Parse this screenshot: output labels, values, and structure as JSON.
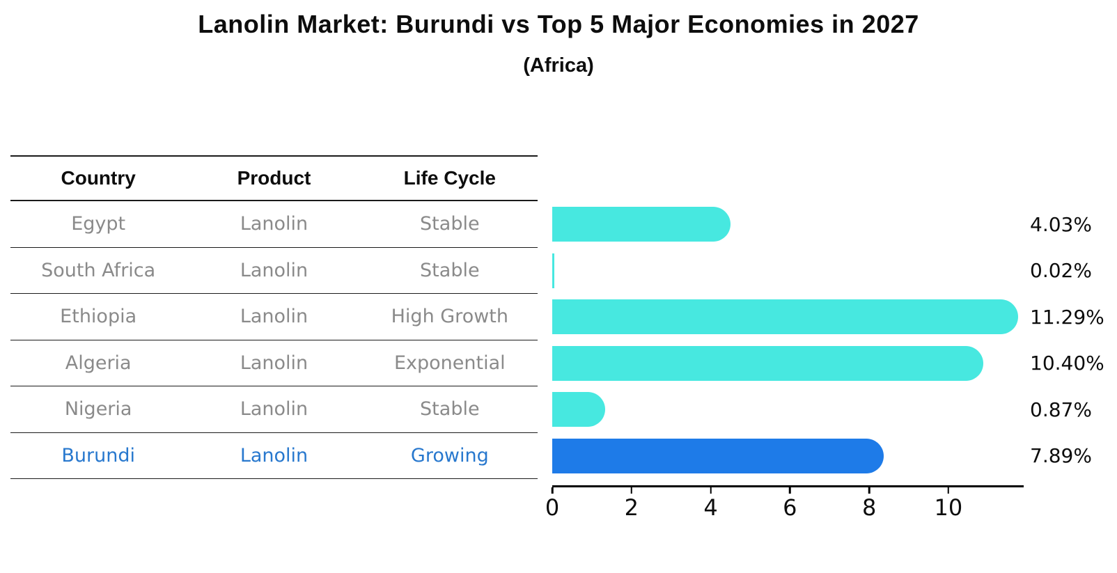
{
  "title": "Lanolin Market: Burundi vs Top 5 Major Economies in 2027",
  "subtitle": "(Africa)",
  "table": {
    "headers": [
      "Country",
      "Product",
      "Life Cycle"
    ],
    "rows": [
      {
        "country": "Egypt",
        "product": "Lanolin",
        "life_cycle": "Stable",
        "highlight": false
      },
      {
        "country": "South Africa",
        "product": "Lanolin",
        "life_cycle": "Stable",
        "highlight": false
      },
      {
        "country": "Ethiopia",
        "product": "Lanolin",
        "life_cycle": "High Growth",
        "highlight": false
      },
      {
        "country": "Algeria",
        "product": "Lanolin",
        "life_cycle": "Exponential",
        "highlight": false
      },
      {
        "country": "Nigeria",
        "product": "Lanolin",
        "life_cycle": "Stable",
        "highlight": false
      },
      {
        "country": "Burundi",
        "product": "Lanolin",
        "life_cycle": "Growing",
        "highlight": true
      }
    ]
  },
  "chart_data": {
    "type": "bar",
    "orientation": "horizontal",
    "title": "Lanolin Market: Burundi vs Top 5 Major Economies in 2027",
    "subtitle": "(Africa)",
    "categories": [
      "Egypt",
      "South Africa",
      "Ethiopia",
      "Algeria",
      "Nigeria",
      "Burundi"
    ],
    "values": [
      4.03,
      0.02,
      11.29,
      10.4,
      0.87,
      7.89
    ],
    "value_labels": [
      "4.03%",
      "0.02%",
      "11.29%",
      "10.40%",
      "0.87%",
      "7.89%"
    ],
    "x_ticks": [
      0,
      2,
      4,
      6,
      8,
      10
    ],
    "xlim": [
      0,
      11.9
    ],
    "grid": false,
    "legend": "none",
    "bar_color": "#47E8E0",
    "highlight_color": "#1E7BE8",
    "highlight_index": 5,
    "highlight_text_color": "#2878CE"
  }
}
